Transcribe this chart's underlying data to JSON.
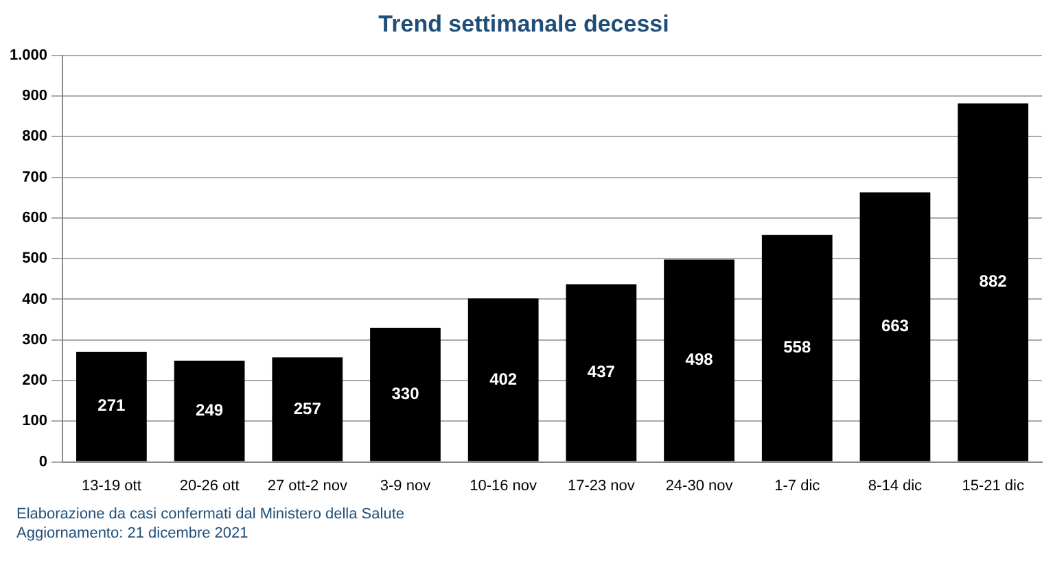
{
  "chart_data": {
    "type": "bar",
    "title": "Trend settimanale decessi",
    "categories": [
      "13-19 ott",
      "20-26 ott",
      "27 ott-2 nov",
      "3-9 nov",
      "10-16 nov",
      "17-23 nov",
      "24-30 nov",
      "1-7 dic",
      "8-14 dic",
      "15-21 dic"
    ],
    "values": [
      271,
      249,
      257,
      330,
      402,
      437,
      498,
      558,
      663,
      882
    ],
    "color": "#000000",
    "ylim": [
      0,
      1000
    ],
    "yticks": [
      0,
      100,
      200,
      300,
      400,
      500,
      600,
      700,
      800,
      900,
      {
        "value": 1000,
        "label": "1.000"
      }
    ],
    "grid": "y",
    "data_labels": true,
    "legend": false,
    "annotations": [
      "Elaborazione da casi confermati dal Ministero della Salute",
      "Aggiornamento: 21 dicembre 2021"
    ]
  }
}
